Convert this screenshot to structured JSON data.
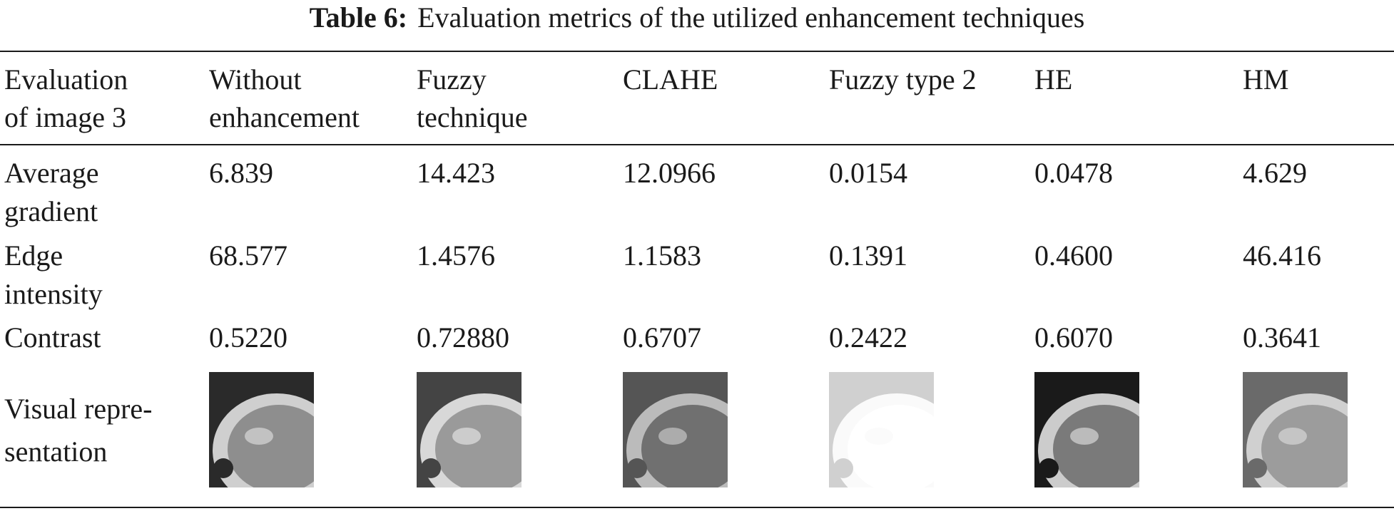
{
  "table": {
    "title_label": "Table 6:",
    "title": "Evaluation metrics of the utilized enhancement techniques",
    "header": [
      [
        "Evaluation",
        "of image 3"
      ],
      [
        "Without",
        "enhancement"
      ],
      [
        "Fuzzy",
        "technique"
      ],
      [
        "CLAHE"
      ],
      [
        "Fuzzy type 2"
      ],
      [
        "HE"
      ],
      [
        "HM"
      ]
    ],
    "rows": [
      [
        [
          "Average",
          "gradient"
        ],
        "6.839",
        "14.423",
        "12.0966",
        "0.0154",
        "0.0478",
        "4.629"
      ],
      [
        [
          "Edge",
          "intensity"
        ],
        "68.577",
        "1.4576",
        "1.1583",
        "0.1391",
        "0.4600",
        "46.416"
      ],
      [
        [
          "Contrast"
        ],
        "0.5220",
        "0.72880",
        "0.6707",
        "0.2422",
        "0.6070",
        "0.3641"
      ]
    ],
    "visual_label": [
      "Visual repre-",
      "sentation"
    ]
  }
}
